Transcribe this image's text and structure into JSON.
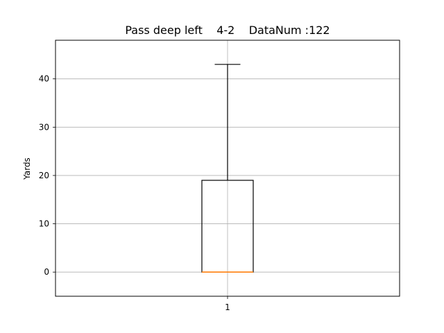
{
  "chart_data": {
    "type": "box",
    "title": "Pass deep left    4-2    DataNum :122",
    "xlabel": "",
    "ylabel": "Yards",
    "categories": [
      "1"
    ],
    "ylim": [
      -5,
      48
    ],
    "yticks": [
      0,
      10,
      20,
      30,
      40
    ],
    "grid": true,
    "boxes": [
      {
        "category": "1",
        "whisker_low": 0,
        "q1": 0,
        "median": 0,
        "q3": 19,
        "whisker_high": 43
      }
    ]
  },
  "colors": {
    "median": "#ff7f0e",
    "grid": "#b0b0b0",
    "box": "#000000"
  }
}
